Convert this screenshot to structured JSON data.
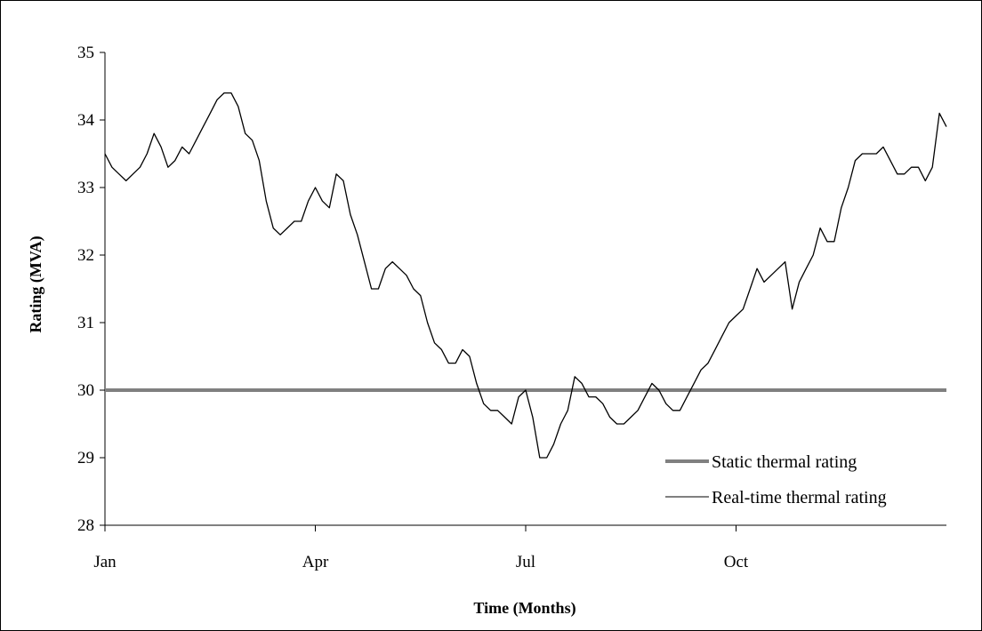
{
  "chart_data": {
    "type": "line",
    "title": "",
    "xlabel": "Time (Months)",
    "ylabel": "Rating (MVA)",
    "x_tick_labels": [
      "Jan",
      "Apr",
      "Jul",
      "Oct"
    ],
    "x_tick_months": [
      0,
      3,
      6,
      9
    ],
    "x_range_months": [
      0,
      12
    ],
    "y_ticks": [
      28,
      29,
      30,
      31,
      32,
      33,
      34,
      35
    ],
    "ylim": [
      28,
      35
    ],
    "grid": false,
    "legend_position": "bottom-right",
    "series": [
      {
        "name": "Static thermal rating",
        "color": "#808080",
        "style": "thick",
        "x": [
          0,
          12
        ],
        "values": [
          30,
          30
        ]
      },
      {
        "name": "Real-time thermal rating",
        "color": "#000000",
        "style": "thin",
        "x": [
          0,
          0.1,
          0.2,
          0.3,
          0.4,
          0.5,
          0.6,
          0.7,
          0.8,
          0.9,
          1.0,
          1.1,
          1.2,
          1.3,
          1.4,
          1.5,
          1.6,
          1.7,
          1.8,
          1.9,
          2.0,
          2.1,
          2.2,
          2.3,
          2.4,
          2.5,
          2.6,
          2.7,
          2.8,
          2.9,
          3.0,
          3.1,
          3.2,
          3.3,
          3.4,
          3.5,
          3.6,
          3.7,
          3.8,
          3.9,
          4.0,
          4.1,
          4.2,
          4.3,
          4.4,
          4.5,
          4.6,
          4.7,
          4.8,
          4.9,
          5.0,
          5.1,
          5.2,
          5.3,
          5.4,
          5.5,
          5.6,
          5.7,
          5.8,
          5.9,
          6.0,
          6.1,
          6.2,
          6.3,
          6.4,
          6.5,
          6.6,
          6.7,
          6.8,
          6.9,
          7.0,
          7.1,
          7.2,
          7.3,
          7.4,
          7.5,
          7.6,
          7.7,
          7.8,
          7.9,
          8.0,
          8.1,
          8.2,
          8.3,
          8.4,
          8.5,
          8.6,
          8.7,
          8.8,
          8.9,
          9.0,
          9.1,
          9.2,
          9.3,
          9.4,
          9.5,
          9.6,
          9.7,
          9.8,
          9.9,
          10.0,
          10.1,
          10.2,
          10.3,
          10.4,
          10.5,
          10.6,
          10.7,
          10.8,
          10.9,
          11.0,
          11.1,
          11.2,
          11.3,
          11.4,
          11.5,
          11.6,
          11.7,
          11.8,
          11.9,
          12.0
        ],
        "values": [
          33.5,
          33.3,
          33.2,
          33.1,
          33.2,
          33.3,
          33.5,
          33.8,
          33.6,
          33.3,
          33.4,
          33.6,
          33.5,
          33.7,
          33.9,
          34.1,
          34.3,
          34.4,
          34.4,
          34.2,
          33.8,
          33.7,
          33.4,
          32.8,
          32.4,
          32.3,
          32.4,
          32.5,
          32.5,
          32.8,
          33.0,
          32.8,
          32.7,
          33.2,
          33.1,
          32.6,
          32.3,
          31.9,
          31.5,
          31.5,
          31.8,
          31.9,
          31.8,
          31.7,
          31.5,
          31.4,
          31.0,
          30.7,
          30.6,
          30.4,
          30.4,
          30.6,
          30.5,
          30.1,
          29.8,
          29.7,
          29.7,
          29.6,
          29.5,
          29.9,
          30.0,
          29.6,
          29.0,
          29.0,
          29.2,
          29.5,
          29.7,
          30.2,
          30.1,
          29.9,
          29.9,
          29.8,
          29.6,
          29.5,
          29.5,
          29.6,
          29.7,
          29.9,
          30.1,
          30.0,
          29.8,
          29.7,
          29.7,
          29.9,
          30.1,
          30.3,
          30.4,
          30.6,
          30.8,
          31.0,
          31.1,
          31.2,
          31.5,
          31.8,
          31.6,
          31.7,
          31.8,
          31.9,
          31.2,
          31.6,
          31.8,
          32.0,
          32.4,
          32.2,
          32.2,
          32.7,
          33.0,
          33.4,
          33.5,
          33.5,
          33.5,
          33.6,
          33.4,
          33.2,
          33.2,
          33.3,
          33.3,
          33.1,
          33.3,
          34.1,
          33.9
        ]
      }
    ]
  }
}
